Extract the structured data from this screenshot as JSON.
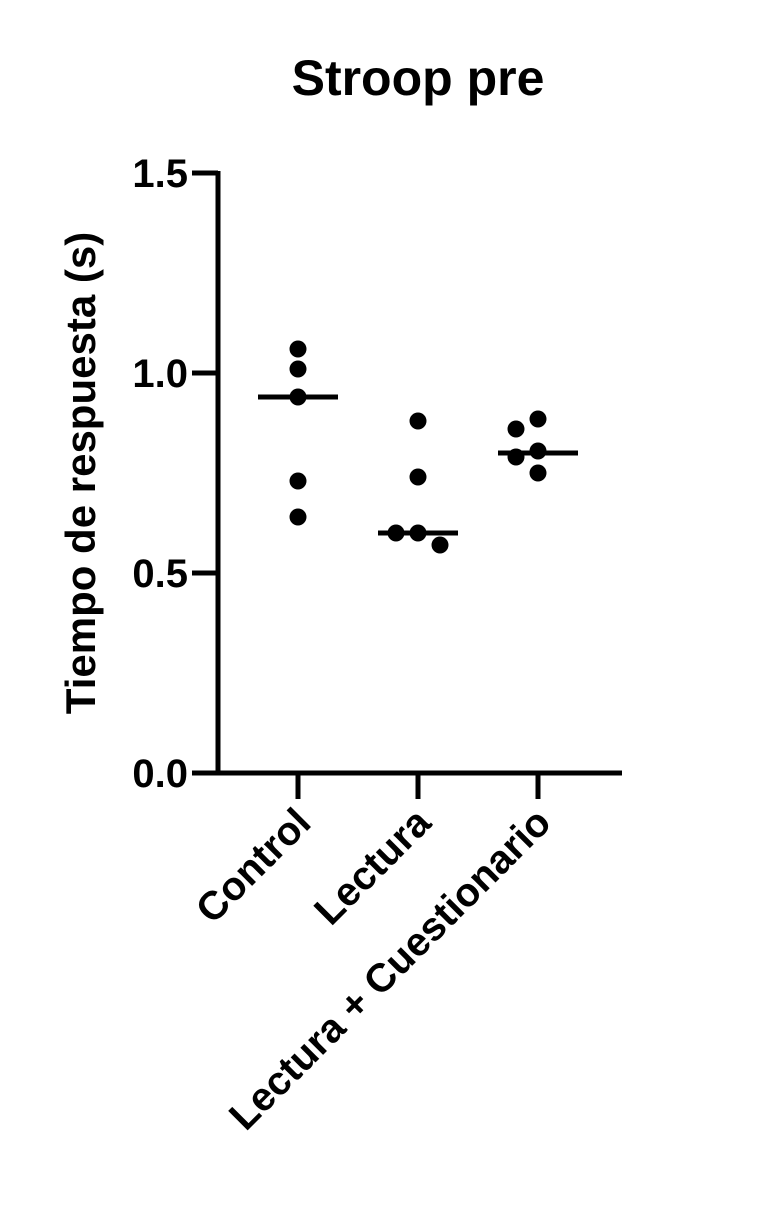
{
  "chart_data": {
    "type": "scatter",
    "title": "Stroop pre",
    "xlabel": "",
    "ylabel": "Tiempo de respuesta (s)",
    "ylim": [
      0,
      1.5
    ],
    "y_ticks": [
      "0.0",
      "0.5",
      "1.0",
      "1.5"
    ],
    "categories": [
      "Control",
      "Lectura",
      "Lectura + Cuestionario"
    ],
    "groups": [
      {
        "category": "Control",
        "points": [
          1.06,
          1.01,
          0.94,
          0.73,
          0.64
        ],
        "median": 0.94
      },
      {
        "category": "Lectura",
        "points": [
          0.88,
          0.74,
          0.6,
          0.6,
          0.57
        ],
        "median": 0.6
      },
      {
        "category": "Lectura + Cuestionario",
        "points": [
          0.885,
          0.86,
          0.805,
          0.79,
          0.75
        ],
        "median": 0.8
      }
    ],
    "grid": false,
    "legend": "none",
    "colors": {
      "marker": "#000000",
      "axis": "#000000"
    }
  }
}
